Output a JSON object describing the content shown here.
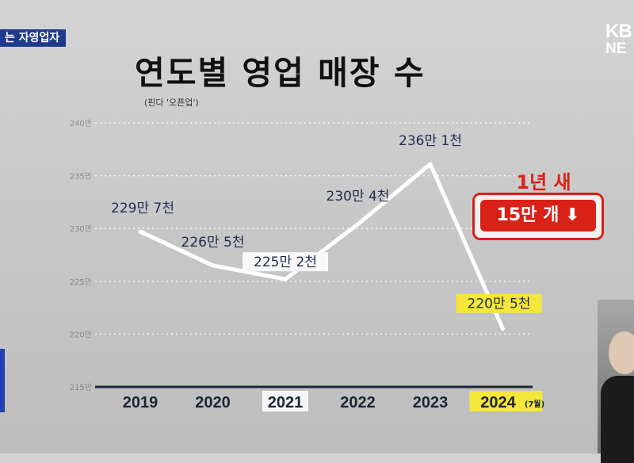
{
  "topic_tag": "는 자영업자",
  "broadcaster": {
    "line1": "KB",
    "line2": "NE"
  },
  "chart_data": {
    "type": "line",
    "title": "연도별 영업 매장 수",
    "subtitle": "(핀다 '오픈업')",
    "y_unit": "만",
    "ylim": [
      215,
      240
    ],
    "y_ticks": [
      "215만",
      "220만",
      "225만",
      "230만",
      "235만",
      "240만"
    ],
    "y_tick_values": [
      215,
      220,
      225,
      230,
      235,
      240
    ],
    "categories": [
      "2019",
      "2020",
      "2021",
      "2022",
      "2023",
      "2024"
    ],
    "category_suffix": {
      "2024": "(7월)"
    },
    "highlighted_categories": [
      "2021",
      "2024"
    ],
    "values": [
      229.7,
      226.5,
      225.2,
      230.4,
      236.1,
      220.5
    ],
    "data_labels": [
      "229만 7천",
      "226만 5천",
      "225만 2천",
      "230만 4천",
      "236만 1천",
      "220만 5천"
    ],
    "highlighted_labels": [
      2,
      5
    ],
    "grid": true,
    "grid_style": "dotted",
    "legend": "none",
    "colors": {
      "line": "#ffffff",
      "text": "#1e2d4f",
      "highlight_yellow": "#f4e63a",
      "axis": "#1c2538"
    }
  },
  "annotation": {
    "line1": "1년 새",
    "line2": "15만 개",
    "arrow": "⬇",
    "color": "#d92118"
  }
}
